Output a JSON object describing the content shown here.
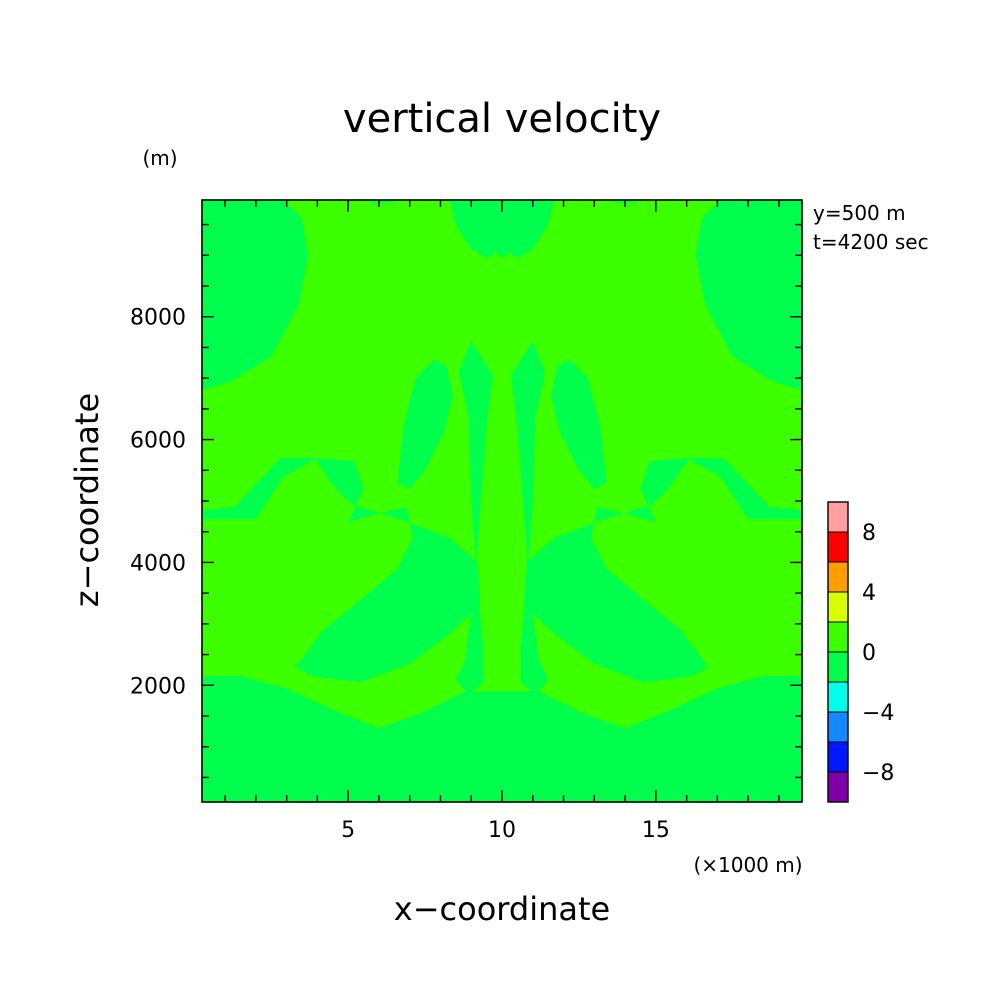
{
  "chart_data": {
    "type": "heatmap",
    "title": "vertical velocity",
    "xlabel": "x−coordinate",
    "ylabel": "z−coordinate",
    "x_unit": "(×1000 m)",
    "y_unit": "(m)",
    "xlim": [
      0.25,
      19.75
    ],
    "ylim": [
      100,
      9900
    ],
    "x_ticks": [
      5,
      10,
      15
    ],
    "y_ticks": [
      2000,
      4000,
      6000,
      8000
    ],
    "x_tick_labels": [
      "5",
      "10",
      "15"
    ],
    "y_tick_labels": [
      "2000",
      "4000",
      "6000",
      "8000"
    ],
    "annotations": [
      "y=500 m",
      "t=4200 sec"
    ],
    "colorbar": {
      "levels": [
        -10,
        -8,
        -6,
        -4,
        -2,
        0,
        2,
        4,
        6,
        8,
        10
      ],
      "tick_labels": [
        "−8",
        "−4",
        "0",
        "4",
        "8"
      ],
      "tick_values": [
        -8,
        -4,
        0,
        4,
        8
      ],
      "colors": [
        "#7f00a8",
        "#0018ff",
        "#1488ff",
        "#00ffe8",
        "#00ff4c",
        "#3cff00",
        "#d8ff00",
        "#ff9e00",
        "#ff0000",
        "#ff9f9f"
      ]
    },
    "fill": {
      "background_level_color": "#3cff00",
      "region_level_color": "#00ff4c",
      "background_range": [
        0,
        2
      ],
      "region_range": [
        -2,
        0
      ]
    },
    "regions": [
      {
        "name": "bottom",
        "points": [
          [
            0.25,
            100
          ],
          [
            0.25,
            2150
          ],
          [
            1.5,
            2150
          ],
          [
            3,
            1950
          ],
          [
            4.5,
            1600
          ],
          [
            6,
            1300
          ],
          [
            7.4,
            1550
          ],
          [
            8.8,
            1900
          ],
          [
            10,
            1900
          ],
          [
            11.2,
            1900
          ],
          [
            12.6,
            1550
          ],
          [
            14,
            1300
          ],
          [
            15.5,
            1600
          ],
          [
            17,
            1950
          ],
          [
            18.5,
            2150
          ],
          [
            19.75,
            2150
          ],
          [
            19.75,
            100
          ]
        ]
      },
      {
        "name": "left-top",
        "points": [
          [
            0.25,
            9900
          ],
          [
            2.9,
            9900
          ],
          [
            3.5,
            9600
          ],
          [
            3.7,
            9000
          ],
          [
            3.4,
            8200
          ],
          [
            2.5,
            7350
          ],
          [
            1.2,
            6950
          ],
          [
            0.25,
            6800
          ]
        ]
      },
      {
        "name": "right-top",
        "points": [
          [
            19.75,
            9900
          ],
          [
            17.1,
            9900
          ],
          [
            16.5,
            9600
          ],
          [
            16.3,
            9000
          ],
          [
            16.6,
            8200
          ],
          [
            17.5,
            7350
          ],
          [
            18.8,
            6950
          ],
          [
            19.75,
            6800
          ]
        ]
      },
      {
        "name": "center-top",
        "points": [
          [
            8.3,
            9900
          ],
          [
            11.7,
            9900
          ],
          [
            11.5,
            9500
          ],
          [
            11.0,
            9100
          ],
          [
            10.5,
            8950
          ],
          [
            10.2,
            9050
          ],
          [
            10,
            8950
          ],
          [
            9.8,
            9050
          ],
          [
            9.5,
            8950
          ],
          [
            9.0,
            9100
          ],
          [
            8.5,
            9500
          ]
        ]
      },
      {
        "name": "left-stem",
        "points": [
          [
            9.0,
            7600
          ],
          [
            9.7,
            7050
          ],
          [
            9.5,
            6200
          ],
          [
            9.3,
            4900
          ],
          [
            9.1,
            3600
          ],
          [
            8.8,
            2400
          ],
          [
            8.5,
            2100
          ],
          [
            8.9,
            1850
          ],
          [
            9.4,
            2050
          ],
          [
            9.4,
            2600
          ],
          [
            9.2,
            3600
          ],
          [
            9.0,
            5000
          ],
          [
            8.9,
            6400
          ],
          [
            8.6,
            7100
          ]
        ]
      },
      {
        "name": "right-stem",
        "points": [
          [
            11.0,
            7600
          ],
          [
            10.3,
            7050
          ],
          [
            10.5,
            6200
          ],
          [
            10.7,
            4900
          ],
          [
            10.9,
            3600
          ],
          [
            11.2,
            2400
          ],
          [
            11.5,
            2100
          ],
          [
            11.1,
            1850
          ],
          [
            10.6,
            2050
          ],
          [
            10.6,
            2600
          ],
          [
            10.8,
            3600
          ],
          [
            11.0,
            5000
          ],
          [
            11.1,
            6400
          ],
          [
            11.4,
            7100
          ]
        ]
      },
      {
        "name": "left-lobe-upper",
        "points": [
          [
            6.6,
            5300
          ],
          [
            6.8,
            6200
          ],
          [
            7.2,
            7000
          ],
          [
            7.8,
            7300
          ],
          [
            8.2,
            7200
          ],
          [
            8.4,
            6700
          ],
          [
            8.1,
            6100
          ],
          [
            7.5,
            5500
          ],
          [
            7.0,
            5200
          ]
        ]
      },
      {
        "name": "right-lobe-upper",
        "points": [
          [
            13.4,
            5300
          ],
          [
            13.2,
            6200
          ],
          [
            12.8,
            7000
          ],
          [
            12.2,
            7300
          ],
          [
            11.8,
            7200
          ],
          [
            11.6,
            6700
          ],
          [
            11.9,
            6100
          ],
          [
            12.5,
            5500
          ],
          [
            13.0,
            5200
          ]
        ]
      },
      {
        "name": "left-wing",
        "points": [
          [
            0.25,
            4700
          ],
          [
            2.0,
            4700
          ],
          [
            2.9,
            5400
          ],
          [
            4.0,
            5700
          ],
          [
            5.2,
            5650
          ],
          [
            5.5,
            5200
          ],
          [
            5.0,
            4650
          ],
          [
            6.0,
            4800
          ],
          [
            6.9,
            4900
          ],
          [
            7.1,
            4400
          ],
          [
            6.6,
            3900
          ],
          [
            5.3,
            3350
          ],
          [
            4.2,
            2900
          ],
          [
            3.3,
            2300
          ],
          [
            3.8,
            2150
          ],
          [
            5.4,
            2050
          ],
          [
            7.0,
            2350
          ],
          [
            8.2,
            2800
          ],
          [
            9.3,
            3300
          ],
          [
            9.2,
            4000
          ],
          [
            8.3,
            4400
          ],
          [
            6.7,
            4700
          ],
          [
            5.1,
            4950
          ],
          [
            4.6,
            5200
          ],
          [
            3.9,
            5700
          ],
          [
            2.8,
            5700
          ],
          [
            1.3,
            4900
          ],
          [
            0.25,
            4850
          ]
        ]
      },
      {
        "name": "right-wing",
        "points": [
          [
            19.75,
            4700
          ],
          [
            18.0,
            4700
          ],
          [
            17.1,
            5400
          ],
          [
            16.0,
            5700
          ],
          [
            14.8,
            5650
          ],
          [
            14.5,
            5200
          ],
          [
            15.0,
            4650
          ],
          [
            14.0,
            4800
          ],
          [
            13.1,
            4900
          ],
          [
            12.9,
            4400
          ],
          [
            13.4,
            3900
          ],
          [
            14.7,
            3350
          ],
          [
            15.8,
            2900
          ],
          [
            16.7,
            2300
          ],
          [
            16.2,
            2150
          ],
          [
            14.6,
            2050
          ],
          [
            13.0,
            2350
          ],
          [
            11.8,
            2800
          ],
          [
            10.7,
            3300
          ],
          [
            10.8,
            4000
          ],
          [
            11.7,
            4400
          ],
          [
            13.3,
            4700
          ],
          [
            14.9,
            4950
          ],
          [
            15.4,
            5200
          ],
          [
            16.1,
            5700
          ],
          [
            17.2,
            5700
          ],
          [
            18.7,
            4900
          ],
          [
            19.75,
            4850
          ]
        ]
      },
      {
        "name": "top-edge",
        "points": [
          [
            5.5,
            9900
          ],
          [
            6.8,
            9900
          ],
          [
            6.3,
            9850
          ],
          [
            5.8,
            9850
          ]
        ]
      },
      {
        "name": "top-edge-2",
        "points": [
          [
            13.4,
            9900
          ],
          [
            14.6,
            9900
          ],
          [
            14.2,
            9850
          ],
          [
            13.8,
            9850
          ]
        ]
      }
    ]
  }
}
